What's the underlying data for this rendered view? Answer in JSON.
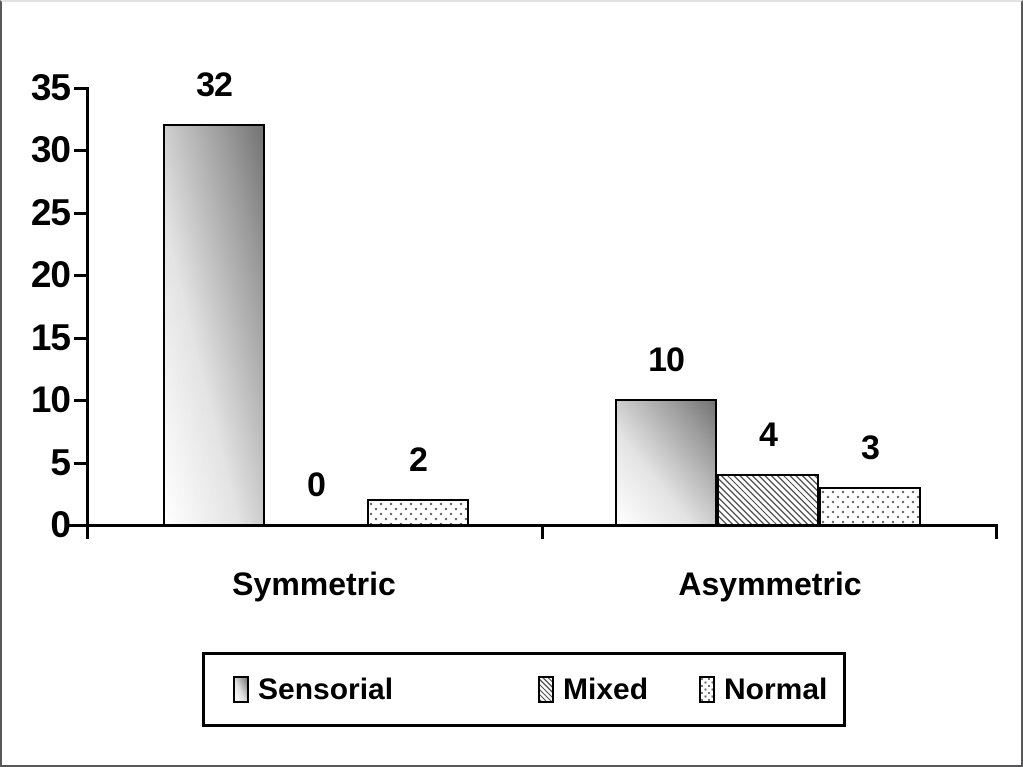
{
  "figure": {
    "background_color": "#ffffff",
    "frame_border_color": "#58585a"
  },
  "chart_data": {
    "type": "bar",
    "title": "",
    "xlabel": "",
    "ylabel": "",
    "categories": [
      "Symmetric",
      "Asymmetric"
    ],
    "series": [
      {
        "name": "Sensorial",
        "pattern": "gradient",
        "values": [
          32,
          10
        ]
      },
      {
        "name": "Mixed",
        "pattern": "hatch",
        "values": [
          0,
          4
        ]
      },
      {
        "name": "Normal",
        "pattern": "dots",
        "values": [
          2,
          3
        ]
      }
    ],
    "ylim": [
      0,
      35
    ],
    "yticks": [
      0,
      5,
      10,
      15,
      20,
      25,
      30,
      35
    ],
    "grid": false,
    "bar_value_labels_shown": true,
    "legend_position": "bottom",
    "colors": {
      "bar_outline": "#000000",
      "axis": "#000000",
      "text": "#000000",
      "gradient_dark": "#737373",
      "gradient_light": "#ffffff",
      "pattern_ink": "#6e6e6e"
    }
  }
}
